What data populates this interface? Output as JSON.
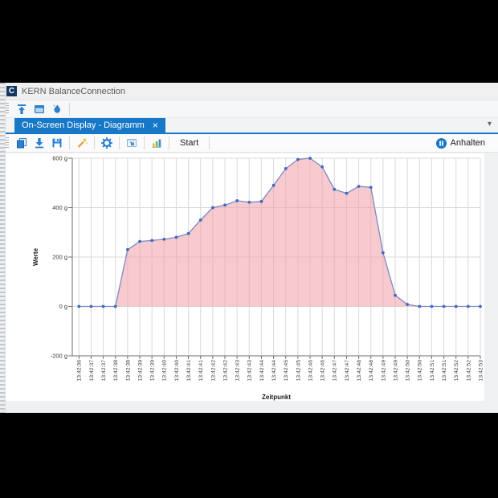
{
  "title_bar": {
    "logo_glyph": "C",
    "app_title": "KERN BalanceConnection"
  },
  "main_toolbar": {
    "icons": [
      "upload-icon",
      "window-icon",
      "droplet-icon"
    ]
  },
  "tab_bar": {
    "active_tab": "On-Screen Display - Diagramm",
    "close_glyph": "×",
    "overflow_glyph": "▾"
  },
  "toolbar": {
    "icons": [
      "copy-icon",
      "import-icon",
      "save-icon",
      "magic-wand-icon",
      "settings-gear-icon",
      "window-export-icon",
      "statistics-icon"
    ],
    "start_label": "Start",
    "stop_label": "Anhalten",
    "stop_icon": "pause-circle-icon"
  },
  "colors": {
    "accent": "#1878c8",
    "series_line": "#7e88c4",
    "series_marker": "#3f68c0",
    "series_fill": "rgba(238,158,166,0.55)",
    "grid": "#d9d9d9",
    "axis": "#6e6e6e",
    "label": "#3a3a3a",
    "logo_bg": "#16365f"
  },
  "chart_data": {
    "type": "area",
    "title": "",
    "xlabel": "Zeitpunkt",
    "ylabel": "Werte",
    "x": [
      "13:42:36",
      "13:42:37",
      "13:42:37",
      "13:42:38",
      "13:42:38",
      "13:42:39",
      "13:42:39",
      "13:42:40",
      "13:42:40",
      "13:42:41",
      "13:42:41",
      "13:42:42",
      "13:42:42",
      "13:42:43",
      "13:42:43",
      "13:42:44",
      "13:42:44",
      "13:42:45",
      "13:42:45",
      "13:42:46",
      "13:42:46",
      "13:42:47",
      "13:42:47",
      "13:42:48",
      "13:42:48",
      "13:42:49",
      "13:42:49",
      "13:42:50",
      "13:42:50",
      "13:42:51",
      "13:42:51",
      "13:42:52",
      "13:42:52",
      "13:42:53"
    ],
    "values": [
      0,
      0,
      0,
      0,
      230,
      263,
      267,
      272,
      280,
      295,
      350,
      400,
      410,
      428,
      422,
      425,
      490,
      558,
      595,
      600,
      565,
      474,
      458,
      486,
      482,
      218,
      45,
      8,
      0,
      0,
      0,
      0,
      0,
      0
    ],
    "unit": "g",
    "ytick_values": [
      600,
      400,
      200,
      0,
      -200
    ],
    "ytick_labels": [
      "600 g",
      "400 g",
      "200 g",
      "0 g",
      "-200 g"
    ],
    "ylim": [
      -200,
      600
    ],
    "grid": true,
    "legend": "none"
  }
}
